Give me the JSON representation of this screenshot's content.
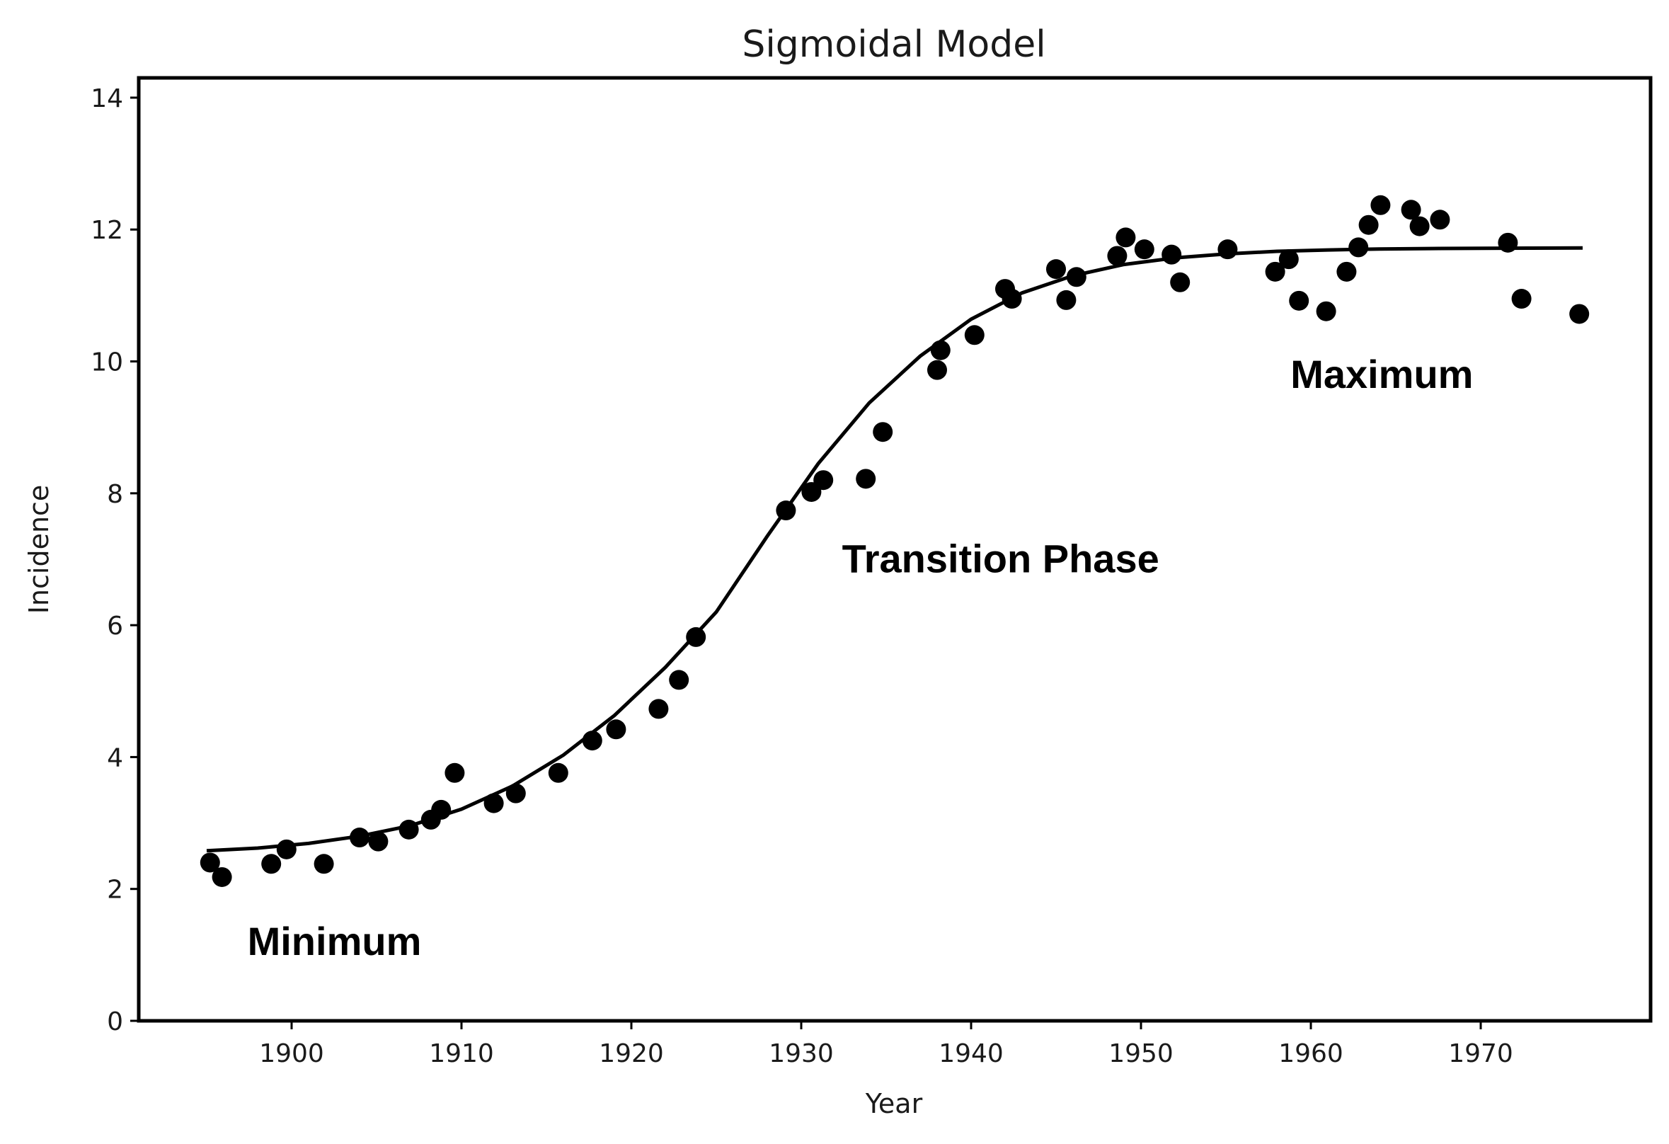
{
  "chart_data": {
    "type": "scatter",
    "title": "Sigmoidal Model",
    "xlabel": "Year",
    "ylabel": "Incidence",
    "xlim": [
      1891,
      1980
    ],
    "ylim": [
      0,
      14.3
    ],
    "xticks": [
      1900,
      1910,
      1920,
      1930,
      1940,
      1950,
      1960,
      1970
    ],
    "yticks": [
      0,
      2,
      4,
      6,
      8,
      10,
      12,
      14
    ],
    "grid": false,
    "legend": "none",
    "colors": {
      "points": "#000000",
      "curve": "#000000",
      "frame": "#000000"
    },
    "annotations": [
      {
        "text": "Minimum",
        "x": 1897.4,
        "y": 1.0
      },
      {
        "text": "Transition Phase",
        "x": 1932.4,
        "y": 6.8
      },
      {
        "text": "Maximum",
        "x": 1958.8,
        "y": 9.6
      }
    ],
    "series": [
      {
        "type": "scatter",
        "points": [
          [
            1895.2,
            2.4
          ],
          [
            1895.9,
            2.18
          ],
          [
            1898.8,
            2.38
          ],
          [
            1899.7,
            2.6
          ],
          [
            1901.9,
            2.38
          ],
          [
            1904.0,
            2.78
          ],
          [
            1905.1,
            2.72
          ],
          [
            1906.9,
            2.9
          ],
          [
            1908.2,
            3.05
          ],
          [
            1908.8,
            3.2
          ],
          [
            1909.6,
            3.76
          ],
          [
            1911.9,
            3.3
          ],
          [
            1913.2,
            3.45
          ],
          [
            1915.7,
            3.76
          ],
          [
            1917.7,
            4.25
          ],
          [
            1919.1,
            4.42
          ],
          [
            1921.6,
            4.73
          ],
          [
            1922.8,
            5.17
          ],
          [
            1923.8,
            5.82
          ],
          [
            1929.1,
            7.74
          ],
          [
            1930.6,
            8.02
          ],
          [
            1931.3,
            8.2
          ],
          [
            1933.8,
            8.22
          ],
          [
            1934.8,
            8.93
          ],
          [
            1938.0,
            9.87
          ],
          [
            1938.2,
            10.17
          ],
          [
            1940.2,
            10.4
          ],
          [
            1942.0,
            11.1
          ],
          [
            1942.4,
            10.95
          ],
          [
            1945.0,
            11.4
          ],
          [
            1945.6,
            10.93
          ],
          [
            1946.2,
            11.28
          ],
          [
            1948.6,
            11.6
          ],
          [
            1949.1,
            11.88
          ],
          [
            1950.2,
            11.7
          ],
          [
            1951.8,
            11.62
          ],
          [
            1952.3,
            11.2
          ],
          [
            1955.1,
            11.7
          ],
          [
            1957.9,
            11.36
          ],
          [
            1958.7,
            11.55
          ],
          [
            1959.3,
            10.92
          ],
          [
            1960.9,
            10.76
          ],
          [
            1962.1,
            11.36
          ],
          [
            1962.8,
            11.73
          ],
          [
            1963.4,
            12.07
          ],
          [
            1964.1,
            12.37
          ],
          [
            1965.9,
            12.3
          ],
          [
            1966.4,
            12.05
          ],
          [
            1967.6,
            12.15
          ],
          [
            1971.6,
            11.8
          ],
          [
            1972.4,
            10.95
          ],
          [
            1975.8,
            10.72
          ]
        ]
      },
      {
        "type": "line",
        "points": [
          [
            1895,
            2.58
          ],
          [
            1898,
            2.62
          ],
          [
            1901,
            2.69
          ],
          [
            1904,
            2.8
          ],
          [
            1907,
            2.96
          ],
          [
            1910,
            3.21
          ],
          [
            1913,
            3.56
          ],
          [
            1916,
            4.03
          ],
          [
            1919,
            4.63
          ],
          [
            1922,
            5.36
          ],
          [
            1925,
            6.2
          ],
          [
            1928,
            7.35
          ],
          [
            1931,
            8.45
          ],
          [
            1934,
            9.37
          ],
          [
            1937,
            10.08
          ],
          [
            1940,
            10.64
          ],
          [
            1943,
            11.04
          ],
          [
            1946,
            11.3
          ],
          [
            1949,
            11.47
          ],
          [
            1952,
            11.57
          ],
          [
            1955,
            11.63
          ],
          [
            1958,
            11.67
          ],
          [
            1961,
            11.69
          ],
          [
            1964,
            11.705
          ],
          [
            1967,
            11.712
          ],
          [
            1970,
            11.716
          ],
          [
            1973,
            11.718
          ],
          [
            1976,
            11.72
          ]
        ]
      }
    ]
  }
}
